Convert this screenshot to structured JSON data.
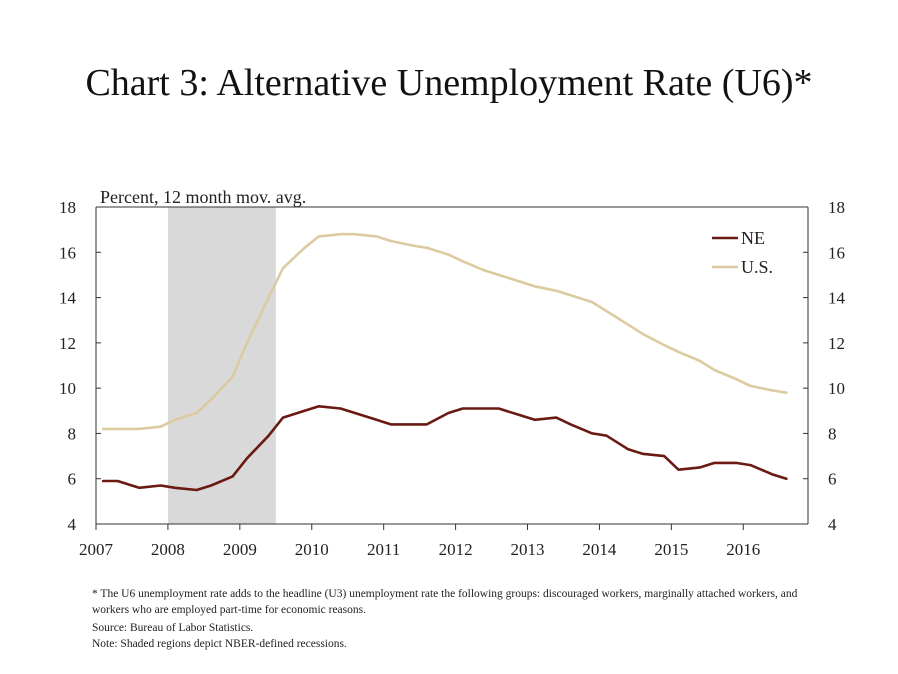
{
  "title": "Chart 3: Alternative Unemployment Rate (U6)*",
  "chart_data": {
    "type": "line",
    "title": "Chart 3: Alternative Unemployment Rate (U6)*",
    "ylabel": "Percent, 12 month mov. avg.",
    "ylim": [
      4,
      18
    ],
    "yticks": [
      4,
      6,
      8,
      10,
      12,
      14,
      16,
      18
    ],
    "xlim": [
      2007,
      2016.9
    ],
    "xticks": [
      "2007",
      "2008",
      "2009",
      "2010",
      "2011",
      "2012",
      "2013",
      "2014",
      "2015",
      "2016"
    ],
    "grid": false,
    "legend_position": "top-right",
    "secondary_axis": "right (same scale)",
    "recession_shading": {
      "start": 2008.0,
      "end": 2009.5,
      "color": "#d9d9d9"
    },
    "series": [
      {
        "name": "NE",
        "color": "#6b1a12",
        "x": [
          2007.1,
          2007.3,
          2007.6,
          2007.9,
          2008.1,
          2008.4,
          2008.6,
          2008.9,
          2009.1,
          2009.4,
          2009.6,
          2009.9,
          2010.1,
          2010.4,
          2010.6,
          2010.9,
          2011.1,
          2011.4,
          2011.6,
          2011.9,
          2012.1,
          2012.4,
          2012.6,
          2012.9,
          2013.1,
          2013.4,
          2013.6,
          2013.9,
          2014.1,
          2014.4,
          2014.6,
          2014.9,
          2015.1,
          2015.4,
          2015.6,
          2015.9,
          2016.1,
          2016.4,
          2016.6
        ],
        "values": [
          5.9,
          5.9,
          5.6,
          5.7,
          5.6,
          5.5,
          5.7,
          6.1,
          6.9,
          7.9,
          8.7,
          9.0,
          9.2,
          9.1,
          8.9,
          8.6,
          8.4,
          8.4,
          8.4,
          8.9,
          9.1,
          9.1,
          9.1,
          8.8,
          8.6,
          8.7,
          8.4,
          8.0,
          7.9,
          7.3,
          7.1,
          7.0,
          6.4,
          6.5,
          6.7,
          6.7,
          6.6,
          6.2,
          6.0
        ]
      },
      {
        "name": "U.S.",
        "color": "#dccba0",
        "x": [
          2007.1,
          2007.3,
          2007.6,
          2007.9,
          2008.1,
          2008.4,
          2008.6,
          2008.9,
          2009.1,
          2009.4,
          2009.6,
          2009.9,
          2010.1,
          2010.4,
          2010.6,
          2010.9,
          2011.1,
          2011.4,
          2011.6,
          2011.9,
          2012.1,
          2012.4,
          2012.6,
          2012.9,
          2013.1,
          2013.4,
          2013.6,
          2013.9,
          2014.1,
          2014.4,
          2014.6,
          2014.9,
          2015.1,
          2015.4,
          2015.6,
          2015.9,
          2016.1,
          2016.4,
          2016.6
        ],
        "values": [
          8.2,
          8.2,
          8.2,
          8.3,
          8.6,
          8.9,
          9.5,
          10.5,
          12.0,
          14.0,
          15.3,
          16.2,
          16.7,
          16.8,
          16.8,
          16.7,
          16.5,
          16.3,
          16.2,
          15.9,
          15.6,
          15.2,
          15.0,
          14.7,
          14.5,
          14.3,
          14.1,
          13.8,
          13.4,
          12.8,
          12.4,
          11.9,
          11.6,
          11.2,
          10.8,
          10.4,
          10.1,
          9.9,
          9.8
        ]
      }
    ]
  },
  "notes": {
    "footnote": "* The U6 unemployment rate adds to the headline (U3) unemployment rate the following groups: discouraged workers, marginally attached workers, and workers who are employed part-time for economic reasons.",
    "source": "Source: Bureau of Labor Statistics.",
    "note": "Note: Shaded regions depict NBER-defined recessions."
  }
}
